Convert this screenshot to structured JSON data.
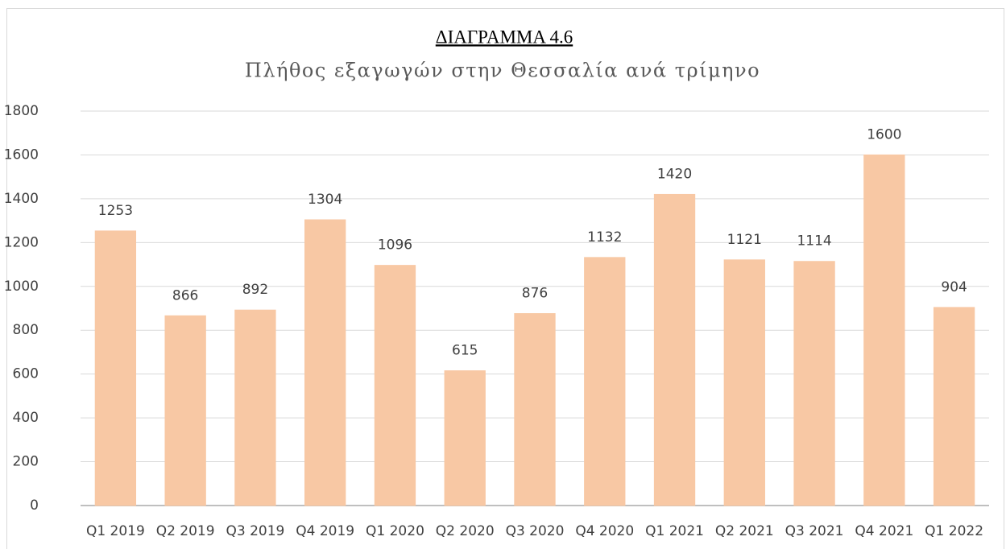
{
  "chart_data": {
    "type": "bar",
    "title": "ΔΙΑΓΡΑΜΜΑ 4.6",
    "subtitle": "Πλήθος εξαγωγών στην Θεσσαλία ανά τρίμηνο",
    "categories": [
      "Q1 2019",
      "Q2 2019",
      "Q3 2019",
      "Q4 2019",
      "Q1 2020",
      "Q2 2020",
      "Q3 2020",
      "Q4 2020",
      "Q1 2021",
      "Q2 2021",
      "Q3 2021",
      "Q4 2021",
      "Q1 2022"
    ],
    "values": [
      1253,
      866,
      892,
      1304,
      1096,
      615,
      876,
      1132,
      1420,
      1121,
      1114,
      1600,
      904
    ],
    "color": "#f8c8a4",
    "ylim": [
      0,
      1800
    ],
    "yticks": [
      0,
      200,
      400,
      600,
      800,
      1000,
      1200,
      1400,
      1600,
      1800
    ],
    "grid": true
  }
}
